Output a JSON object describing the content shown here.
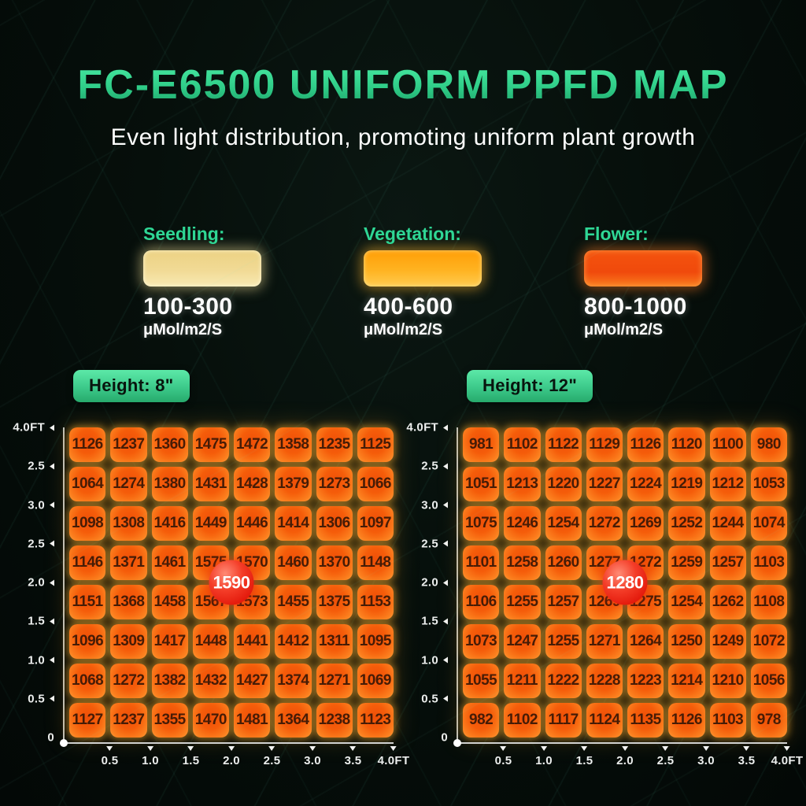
{
  "header": {
    "title": "FC-E6500 UNIFORM PPFD MAP",
    "subtitle": "Even light distribution, promoting uniform plant growth"
  },
  "legend": [
    {
      "label": "Seedling:",
      "range": "100-300",
      "unit": "μMol/m2/S",
      "swatch_color": "#f1da95"
    },
    {
      "label": "Vegetation:",
      "range": "400-600",
      "unit": "μMol/m2/S",
      "swatch_color": "#ffb321"
    },
    {
      "label": "Flower:",
      "range": "800-1000",
      "unit": "μMol/m2/S",
      "swatch_color": "#f4530e"
    }
  ],
  "colors": {
    "title_green": "#35d68f",
    "legend_label_green": "#2fd795",
    "cell_orange": "#f55d0a",
    "cell_text": "#461c06",
    "peak_red": "#e41b0d",
    "height_badge_green": "#3cc98a",
    "axis": "#eceeed"
  },
  "chart_data": [
    {
      "type": "heatmap",
      "title": "Height: 8\"",
      "center_peak": "1590",
      "x_ticks": [
        "0.5",
        "1.0",
        "1.5",
        "2.0",
        "2.5",
        "3.0",
        "3.5",
        "4.0FT"
      ],
      "y_ticks": [
        "4.0FT",
        "2.5",
        "3.0",
        "2.5",
        "2.0",
        "1.5",
        "1.0",
        "0.5",
        "0"
      ],
      "values": [
        [
          1126,
          1237,
          1360,
          1475,
          1472,
          1358,
          1235,
          1125
        ],
        [
          1064,
          1274,
          1380,
          1431,
          1428,
          1379,
          1273,
          1066
        ],
        [
          1098,
          1308,
          1416,
          1449,
          1446,
          1414,
          1306,
          1097
        ],
        [
          1146,
          1371,
          1461,
          1575,
          1570,
          1460,
          1370,
          1148
        ],
        [
          1151,
          1368,
          1458,
          1567,
          1573,
          1455,
          1375,
          1153
        ],
        [
          1096,
          1309,
          1417,
          1448,
          1441,
          1412,
          1311,
          1095
        ],
        [
          1068,
          1272,
          1382,
          1432,
          1427,
          1374,
          1271,
          1069
        ],
        [
          1127,
          1237,
          1355,
          1470,
          1481,
          1364,
          1238,
          1123
        ]
      ]
    },
    {
      "type": "heatmap",
      "title": "Height: 12\"",
      "center_peak": "1280",
      "x_ticks": [
        "0.5",
        "1.0",
        "1.5",
        "2.0",
        "2.5",
        "3.0",
        "3.5",
        "4.0FT"
      ],
      "y_ticks": [
        "4.0FT",
        "2.5",
        "3.0",
        "2.5",
        "2.0",
        "1.5",
        "1.0",
        "0.5",
        "0"
      ],
      "values": [
        [
          981,
          1102,
          1122,
          1129,
          1126,
          1120,
          1100,
          980
        ],
        [
          1051,
          1213,
          1220,
          1227,
          1224,
          1219,
          1212,
          1053
        ],
        [
          1075,
          1246,
          1254,
          1272,
          1269,
          1252,
          1244,
          1074
        ],
        [
          1101,
          1258,
          1260,
          1277,
          1272,
          1259,
          1257,
          1103
        ],
        [
          1106,
          1255,
          1257,
          1269,
          1275,
          1254,
          1262,
          1108
        ],
        [
          1073,
          1247,
          1255,
          1271,
          1264,
          1250,
          1249,
          1072
        ],
        [
          1055,
          1211,
          1222,
          1228,
          1223,
          1214,
          1210,
          1056
        ],
        [
          982,
          1102,
          1117,
          1124,
          1135,
          1126,
          1103,
          978
        ]
      ]
    }
  ]
}
